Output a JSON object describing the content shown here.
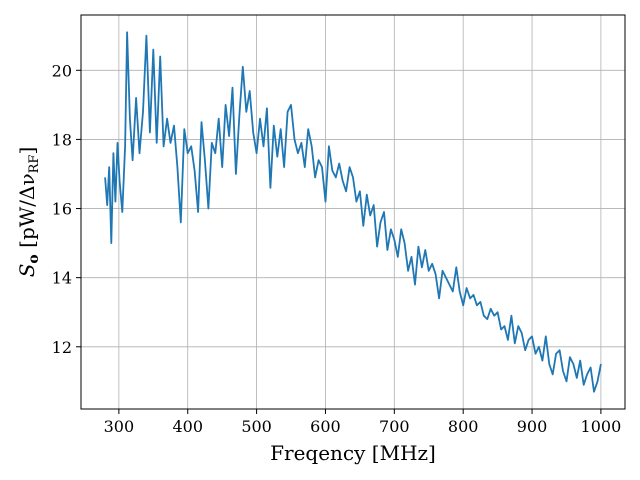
{
  "chart_data": {
    "type": "line",
    "title": "",
    "xlabel": "Freqency [MHz]",
    "ylabel_main": "S",
    "ylabel_sub": "o",
    "ylabel_unit_open": " [pW/Δν",
    "ylabel_unit_sub": "RF",
    "ylabel_unit_close": "]",
    "xlim": [
      245,
      1035
    ],
    "ylim": [
      10.2,
      21.6
    ],
    "xticks": [
      300,
      400,
      500,
      600,
      700,
      800,
      900,
      1000
    ],
    "yticks": [
      12,
      14,
      16,
      18,
      20
    ],
    "grid": true,
    "legend": "none",
    "series": [
      {
        "color": "#1f77b4",
        "x": [
          280,
          283,
          286,
          289,
          292,
          295,
          298,
          301,
          305,
          309,
          312,
          316,
          320,
          325,
          330,
          335,
          340,
          345,
          350,
          355,
          360,
          365,
          370,
          375,
          380,
          385,
          390,
          395,
          400,
          405,
          410,
          415,
          420,
          425,
          430,
          435,
          440,
          445,
          450,
          455,
          460,
          465,
          470,
          475,
          480,
          485,
          490,
          495,
          500,
          505,
          510,
          515,
          520,
          525,
          530,
          535,
          540,
          545,
          550,
          555,
          560,
          565,
          570,
          575,
          580,
          585,
          590,
          595,
          600,
          605,
          610,
          615,
          620,
          625,
          630,
          635,
          640,
          645,
          650,
          655,
          660,
          665,
          670,
          675,
          680,
          685,
          690,
          695,
          700,
          705,
          710,
          715,
          720,
          725,
          730,
          735,
          740,
          745,
          750,
          755,
          760,
          765,
          770,
          775,
          780,
          785,
          790,
          795,
          800,
          805,
          810,
          815,
          820,
          825,
          830,
          835,
          840,
          845,
          850,
          855,
          860,
          865,
          870,
          875,
          880,
          885,
          890,
          895,
          900,
          905,
          910,
          915,
          920,
          925,
          930,
          935,
          940,
          945,
          950,
          955,
          960,
          965,
          970,
          975,
          980,
          985,
          990,
          995,
          1000
        ],
        "y": [
          16.9,
          16.1,
          17.2,
          15.0,
          17.6,
          16.2,
          17.9,
          16.8,
          15.9,
          17.8,
          21.1,
          18.6,
          17.4,
          19.2,
          17.6,
          18.8,
          21.0,
          18.2,
          20.6,
          17.9,
          20.4,
          17.8,
          18.6,
          17.9,
          18.4,
          17.2,
          15.6,
          18.3,
          17.6,
          17.8,
          17.1,
          15.9,
          18.5,
          17.4,
          16.0,
          17.9,
          17.6,
          18.6,
          17.2,
          19.0,
          18.1,
          19.5,
          17.0,
          18.7,
          20.1,
          18.8,
          19.4,
          18.2,
          17.6,
          18.6,
          17.8,
          18.9,
          16.6,
          18.4,
          17.5,
          18.3,
          17.2,
          18.8,
          19.0,
          18.0,
          17.6,
          17.9,
          17.2,
          18.3,
          17.8,
          16.9,
          17.4,
          17.2,
          16.2,
          17.8,
          17.1,
          16.9,
          17.3,
          16.8,
          16.5,
          17.2,
          16.9,
          16.2,
          16.5,
          15.5,
          16.4,
          15.8,
          16.1,
          14.9,
          15.6,
          15.9,
          14.8,
          15.4,
          15.1,
          14.6,
          15.4,
          15.0,
          14.2,
          14.6,
          13.8,
          14.9,
          14.3,
          14.8,
          14.2,
          14.4,
          14.1,
          13.4,
          14.2,
          14.0,
          13.8,
          13.6,
          14.3,
          13.6,
          13.2,
          13.7,
          13.4,
          13.5,
          13.2,
          13.3,
          12.9,
          12.8,
          13.1,
          12.9,
          13.0,
          12.5,
          12.6,
          12.2,
          12.9,
          12.1,
          12.6,
          12.4,
          11.9,
          12.2,
          12.3,
          11.8,
          12.0,
          11.6,
          12.3,
          11.5,
          11.2,
          11.8,
          11.9,
          11.3,
          11.0,
          11.7,
          11.5,
          11.1,
          11.6,
          10.9,
          11.2,
          11.4,
          10.7,
          11.0,
          11.5
        ]
      }
    ]
  }
}
